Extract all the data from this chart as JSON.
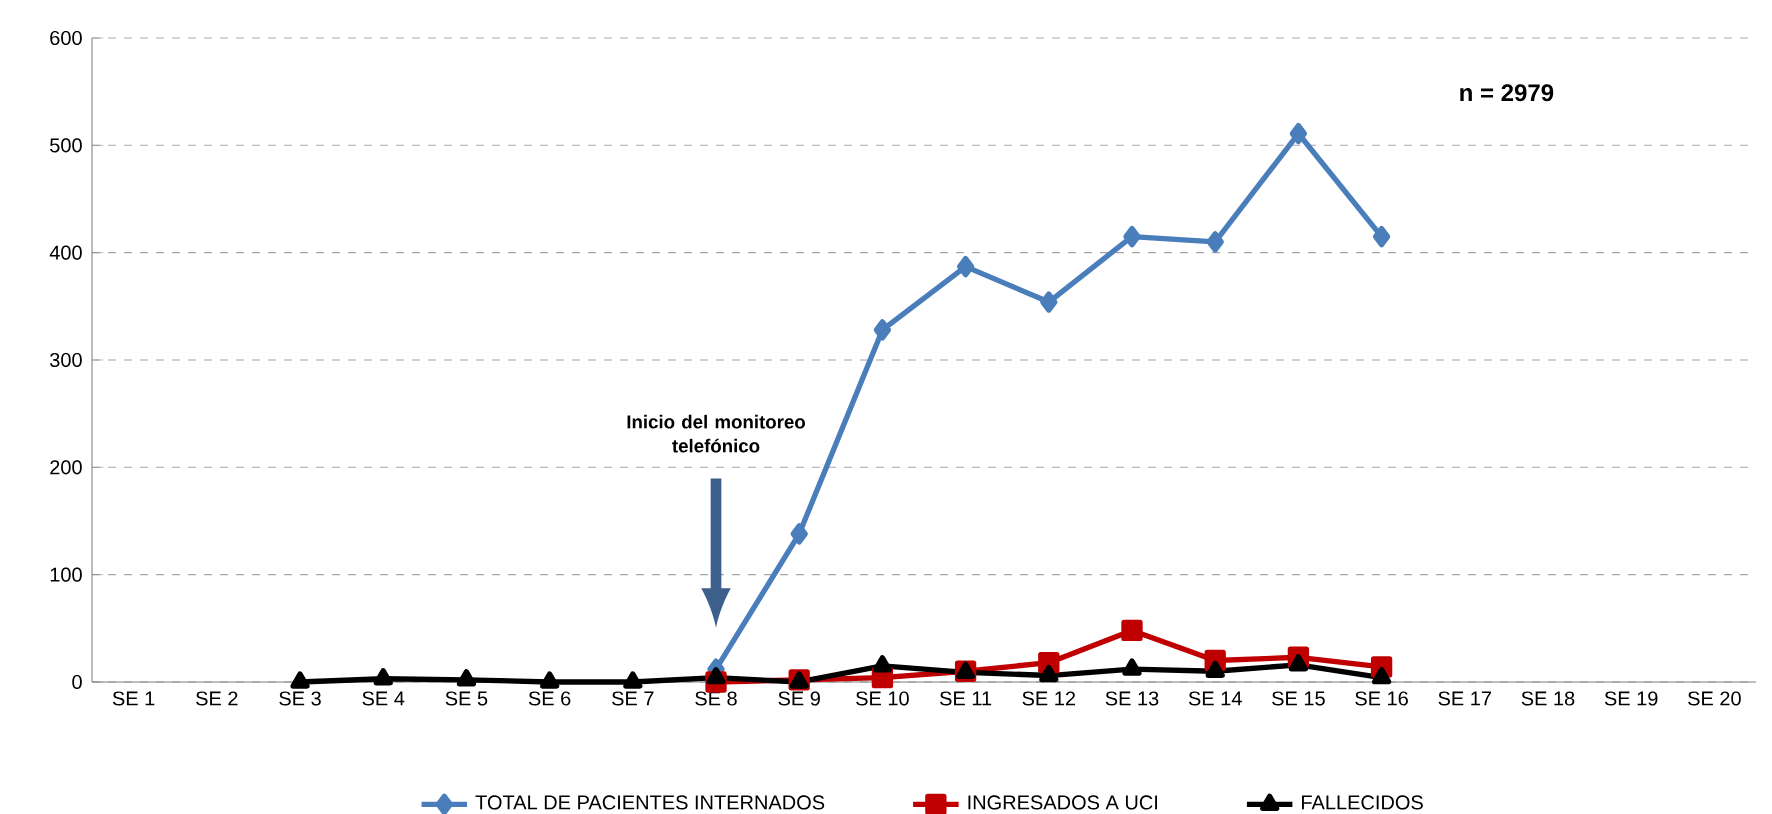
{
  "chart_data": {
    "type": "line",
    "categories": [
      "SE 1",
      "SE 2",
      "SE 3",
      "SE 4",
      "SE 5",
      "SE 6",
      "SE 7",
      "SE 8",
      "SE 9",
      "SE 10",
      "SE 11",
      "SE 12",
      "SE 13",
      "SE 14",
      "SE 15",
      "SE 16",
      "SE 17",
      "SE 18",
      "SE 19",
      "SE 20"
    ],
    "series": [
      {
        "name": "TOTAL DE  PACIENTES  INTERNADOS",
        "color": "#4a7ebb",
        "marker": "diamond",
        "values": [
          null,
          null,
          null,
          null,
          null,
          null,
          null,
          12,
          138,
          328,
          387,
          354,
          415,
          410,
          511,
          415,
          null,
          null,
          null,
          null
        ]
      },
      {
        "name": "INGRESADOS A UCI",
        "color": "#c00000",
        "marker": "square",
        "values": [
          null,
          null,
          null,
          null,
          null,
          null,
          null,
          0,
          2,
          4,
          10,
          18,
          48,
          20,
          23,
          14,
          null,
          null,
          null,
          null
        ]
      },
      {
        "name": "FALLECIDOS",
        "color": "#000000",
        "marker": "triangle",
        "values": [
          null,
          null,
          0,
          3,
          2,
          0,
          0,
          4,
          0,
          15,
          9,
          6,
          12,
          10,
          16,
          4,
          null,
          null,
          null,
          null
        ]
      }
    ],
    "ylim": [
      0,
      600
    ],
    "yticks": [
      0,
      100,
      200,
      300,
      400,
      500,
      600
    ],
    "grid": "y",
    "legend": "bottom",
    "line_style": "solid",
    "annotations": [
      "n = 2979",
      "Inicio del monitoreo telefónico"
    ]
  }
}
